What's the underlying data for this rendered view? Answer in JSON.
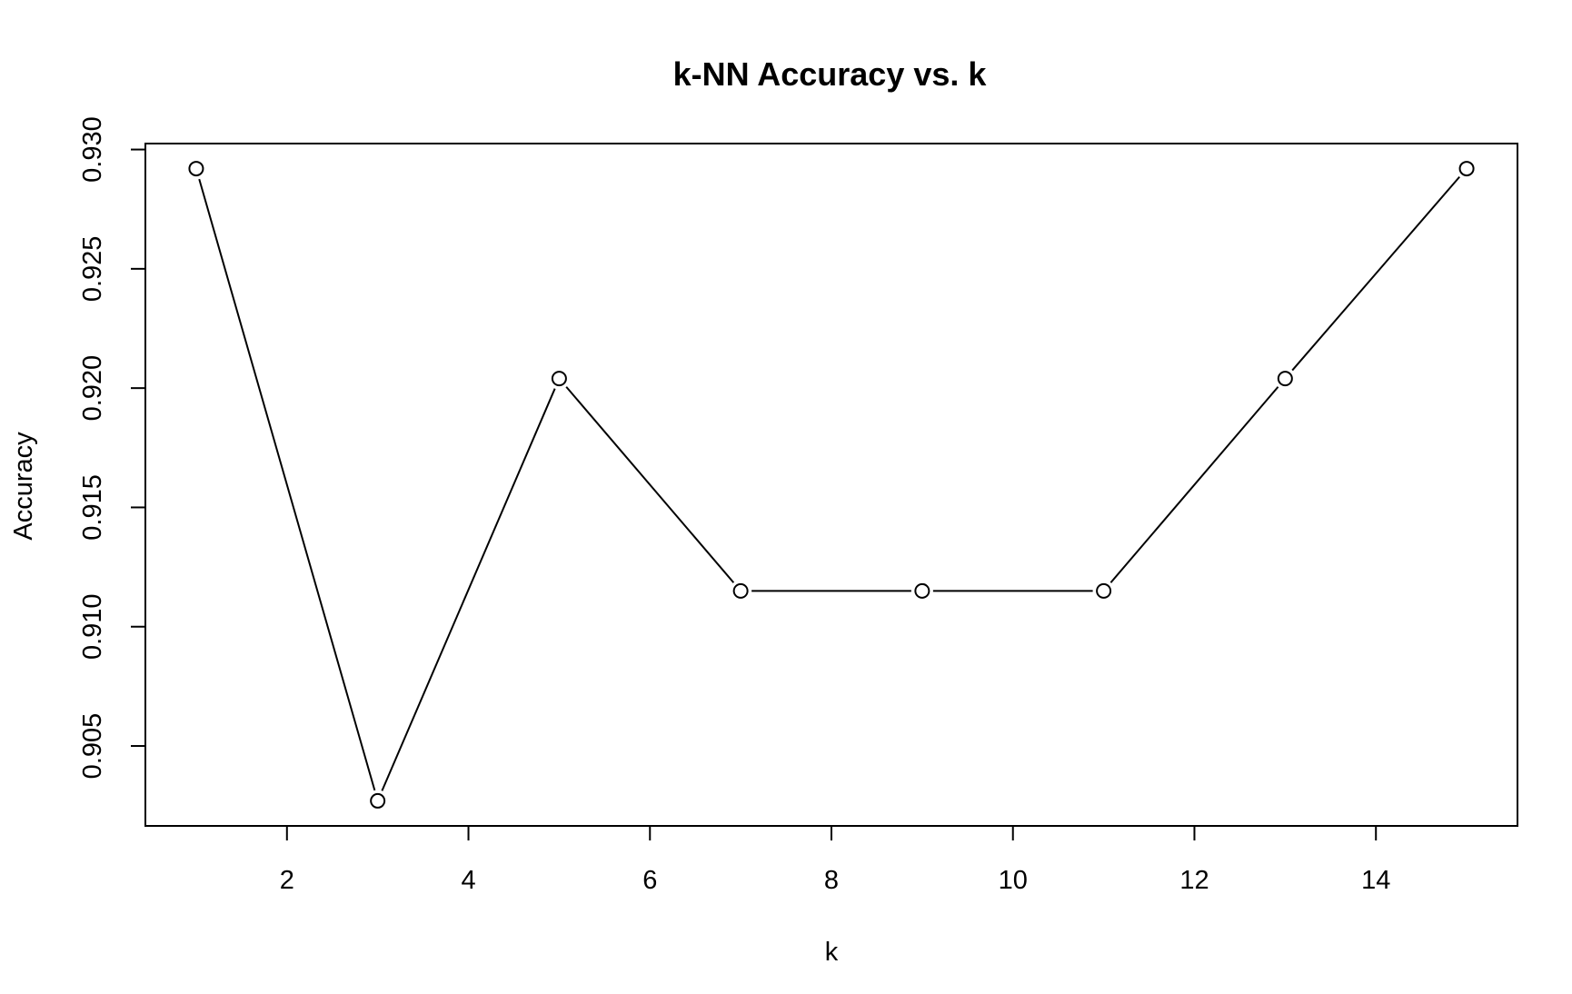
{
  "chart_data": {
    "type": "line",
    "title": "k-NN Accuracy vs. k",
    "xlabel": "k",
    "ylabel": "Accuracy",
    "x": [
      1,
      3,
      5,
      7,
      9,
      11,
      13,
      15
    ],
    "series": [
      {
        "values": [
          0.9292,
          0.9027,
          0.9204,
          0.9115,
          0.9115,
          0.9115,
          0.9204,
          0.9292
        ]
      }
    ],
    "xlim": [
      0.44,
      15.56
    ],
    "ylim": [
      0.90165,
      0.93025
    ],
    "x_ticks": [
      2,
      4,
      6,
      8,
      10,
      12,
      14
    ],
    "x_tick_labels": [
      "2",
      "4",
      "6",
      "8",
      "10",
      "12",
      "14"
    ],
    "y_ticks": [
      0.905,
      0.91,
      0.915,
      0.92,
      0.925,
      0.93
    ],
    "y_tick_labels": [
      "0.905",
      "0.910",
      "0.915",
      "0.920",
      "0.925",
      "0.930"
    ],
    "marker": "open-circle",
    "line_color": "#000000",
    "grid": false,
    "legend": false
  }
}
